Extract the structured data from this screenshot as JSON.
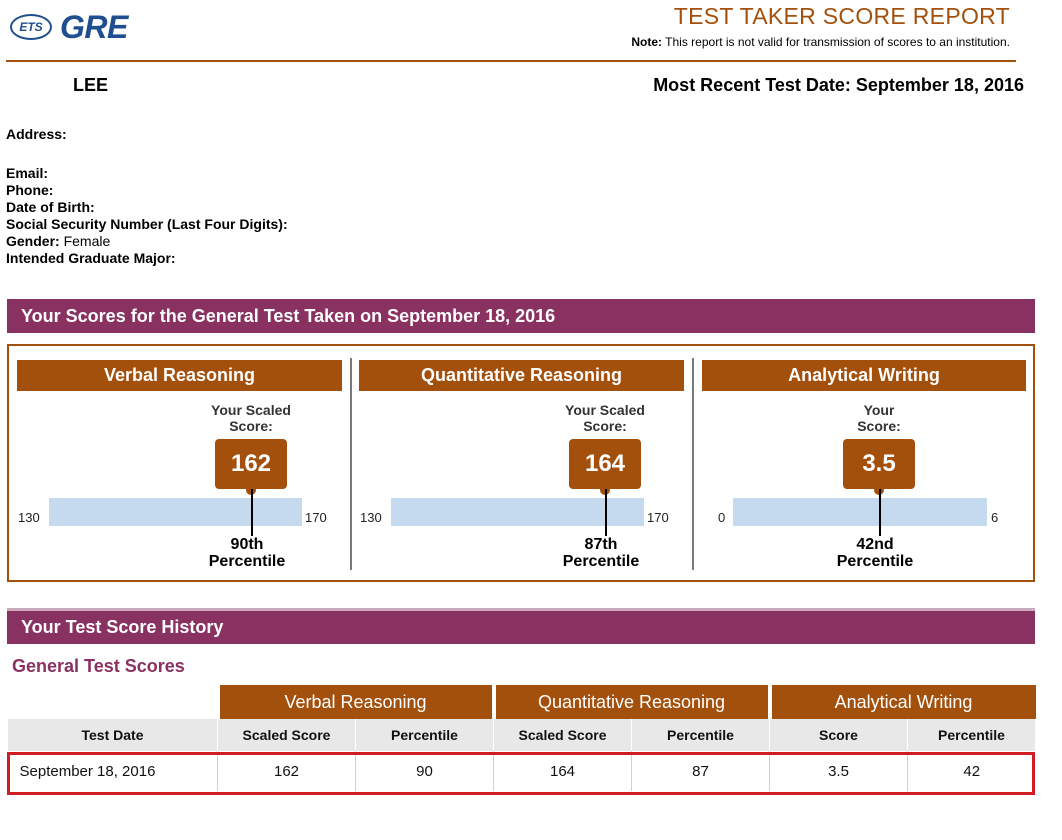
{
  "header": {
    "logo_ets": "ETS",
    "logo_gre": "GRE",
    "title": "TEST TAKER SCORE REPORT",
    "note_label": "Note:",
    "note_text": " This report is not valid for transmission of scores to an institution."
  },
  "candidate": {
    "name": "LEE",
    "recent_label": "Most Recent Test Date: September 18, 2016"
  },
  "info": {
    "address_label": "Address:",
    "email_label": "Email:",
    "phone_label": "Phone:",
    "dob_label": "Date of Birth:",
    "ssn_label": "Social Security Number (Last Four Digits):",
    "gender_label": "Gender:",
    "gender_value": " Female",
    "major_label": "Intended Graduate Major:"
  },
  "scores_section": {
    "title": "Your Scores for the General Test Taken on September 18, 2016",
    "measures": [
      {
        "name": "Verbal Reasoning",
        "label_1": "Your Scaled",
        "label_2": "Score:",
        "score": "162",
        "min": "130",
        "max": "170",
        "pct_1": "90th",
        "pct_2": "Percentile"
      },
      {
        "name": "Quantitative Reasoning",
        "label_1": "Your Scaled",
        "label_2": "Score:",
        "score": "164",
        "min": "130",
        "max": "170",
        "pct_1": "87th",
        "pct_2": "Percentile"
      },
      {
        "name": "Analytical Writing",
        "label_1": "Your",
        "label_2": "Score:",
        "score": "3.5",
        "min": "0",
        "max": "6",
        "pct_1": "42nd",
        "pct_2": "Percentile"
      }
    ]
  },
  "history": {
    "title": "Your Test Score History",
    "subtitle": "General Test Scores",
    "groups": [
      "Verbal Reasoning",
      "Quantitative Reasoning",
      "Analytical Writing"
    ],
    "columns": [
      "Test Date",
      "Scaled Score",
      "Percentile",
      "Scaled Score",
      "Percentile",
      "Score",
      "Percentile"
    ],
    "rows": [
      [
        "September 18, 2016",
        "162",
        "90",
        "164",
        "87",
        "3.5",
        "42"
      ]
    ]
  },
  "colors": {
    "accent": "#a3500c",
    "section_bar": "#893160",
    "scale_bar": "#c5d9ef",
    "highlight": "#d01c25"
  }
}
